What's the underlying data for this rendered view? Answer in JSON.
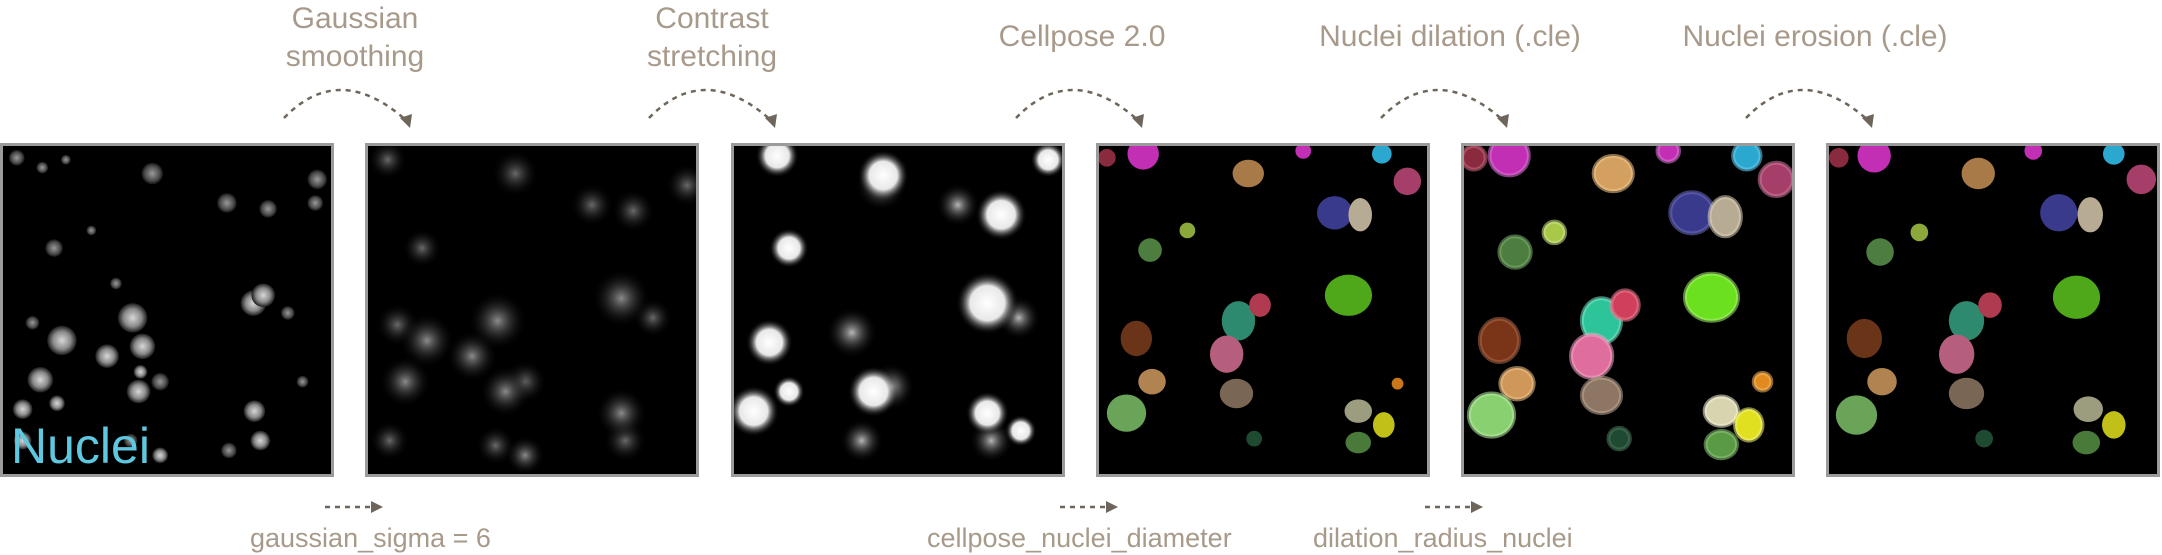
{
  "steps": [
    {
      "label_line1": "Gaussian",
      "label_line2": "smoothing"
    },
    {
      "label_line1": "Contrast",
      "label_line2": "stretching"
    },
    {
      "label_line1": "Cellpose 2.0",
      "label_line2": ""
    },
    {
      "label_line1": "Nuclei dilation (.cle)",
      "label_line2": ""
    },
    {
      "label_line1": "Nuclei erosion (.cle)",
      "label_line2": ""
    }
  ],
  "panels": {
    "first_label": "Nuclei"
  },
  "parameters": [
    {
      "text": "gaussian_sigma = 6"
    },
    {
      "text": "cellpose_nuclei_diameter"
    },
    {
      "text": "dilation_radius_nuclei"
    }
  ],
  "colors": {
    "label_text": "#a89a8a",
    "nuclei_label": "#5ec8e0",
    "arrow": "#6e655b",
    "panel_border": "#9b9b9b"
  }
}
